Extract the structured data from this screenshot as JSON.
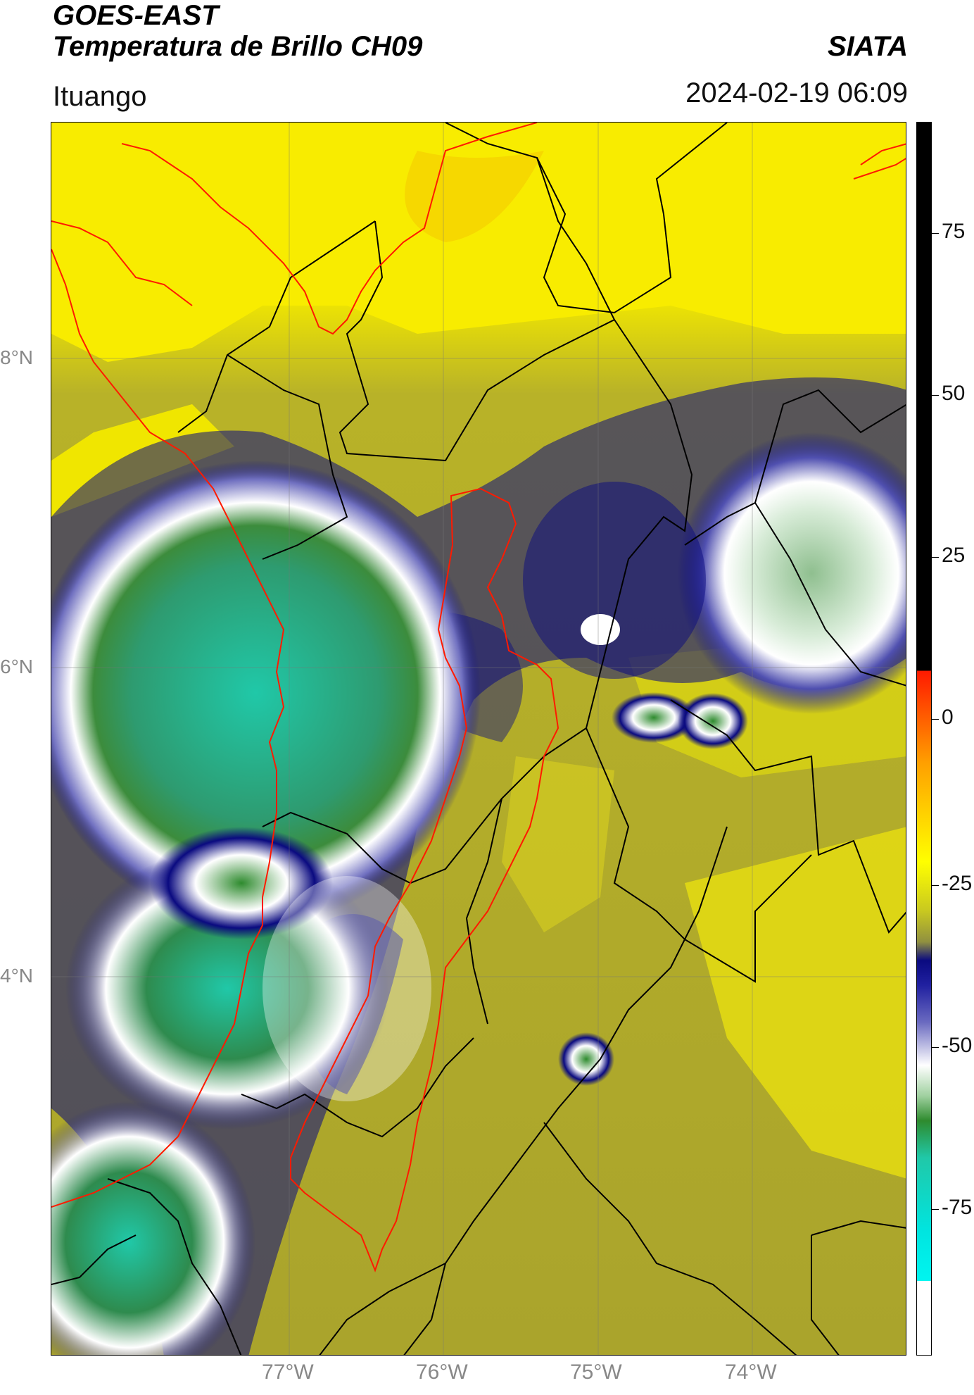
{
  "header": {
    "satellite": "GOES-EAST",
    "product": "Temperatura de Brillo CH09",
    "brand": "SIATA",
    "region": "Ituango",
    "datetime": "2024-02-19 06:09"
  },
  "map": {
    "lat_labels": [
      "8°N",
      "6°N",
      "4°N"
    ],
    "lon_labels": [
      "77°W",
      "76°W",
      "75°W",
      "74°W"
    ],
    "gridlines": true
  },
  "colorbar": {
    "ticks": [
      "75",
      "50",
      "25",
      "0",
      "-25",
      "-50",
      "-75"
    ],
    "colors": {
      "black": "#000000",
      "red": "#ff1a00",
      "orange": "#ffa000",
      "yellow": "#ffff00",
      "olive": "#a8a830",
      "navy": "#0a0a80",
      "white": "#ffffff",
      "green": "#2e8b2e",
      "teal": "#20c8a8",
      "cyan": "#00e5e0"
    }
  }
}
